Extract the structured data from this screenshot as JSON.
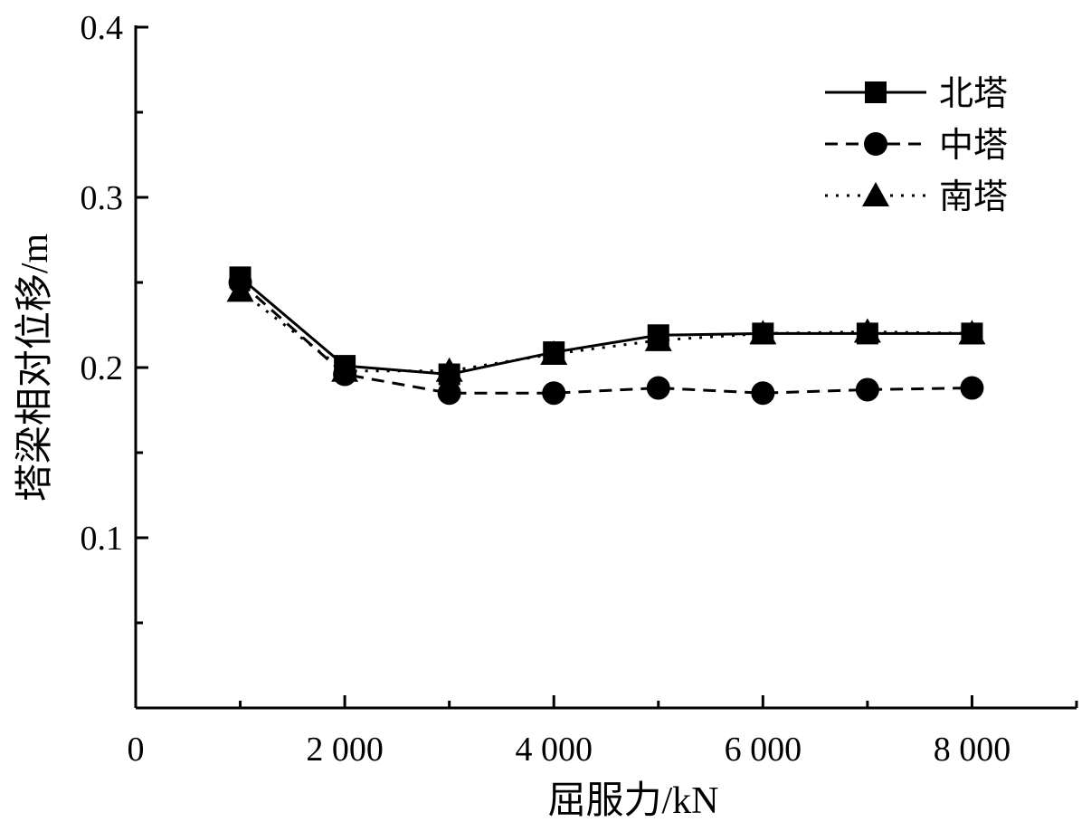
{
  "chart_data": {
    "type": "line",
    "title": "",
    "xlabel": "屈服力/kN",
    "ylabel": "塔梁相对位移/m",
    "xlim": [
      0,
      9000
    ],
    "ylim": [
      0,
      0.4
    ],
    "x_ticks": [
      0,
      2000,
      4000,
      6000,
      8000
    ],
    "x_tick_labels": [
      "0",
      "2 000",
      "4 000",
      "6 000",
      "8 000"
    ],
    "y_ticks": [
      0.1,
      0.2,
      0.3,
      0.4
    ],
    "y_tick_labels": [
      "0.1",
      "0.2",
      "0.3",
      "0.4"
    ],
    "x_minor_step": 1000,
    "y_minor_step": 0.05,
    "grid": false,
    "legend_position": "top-right",
    "x": [
      1000,
      2000,
      3000,
      4000,
      5000,
      6000,
      7000,
      8000
    ],
    "series": [
      {
        "name": "北塔",
        "marker": "square",
        "line": "solid",
        "values": [
          0.253,
          0.201,
          0.196,
          0.209,
          0.219,
          0.22,
          0.22,
          0.22
        ]
      },
      {
        "name": "中塔",
        "marker": "circle",
        "line": "dashed",
        "values": [
          0.25,
          0.196,
          0.185,
          0.185,
          0.188,
          0.185,
          0.187,
          0.188
        ]
      },
      {
        "name": "南塔",
        "marker": "triangle",
        "line": "dotted",
        "values": [
          0.245,
          0.198,
          0.198,
          0.208,
          0.216,
          0.22,
          0.221,
          0.22
        ]
      }
    ]
  }
}
